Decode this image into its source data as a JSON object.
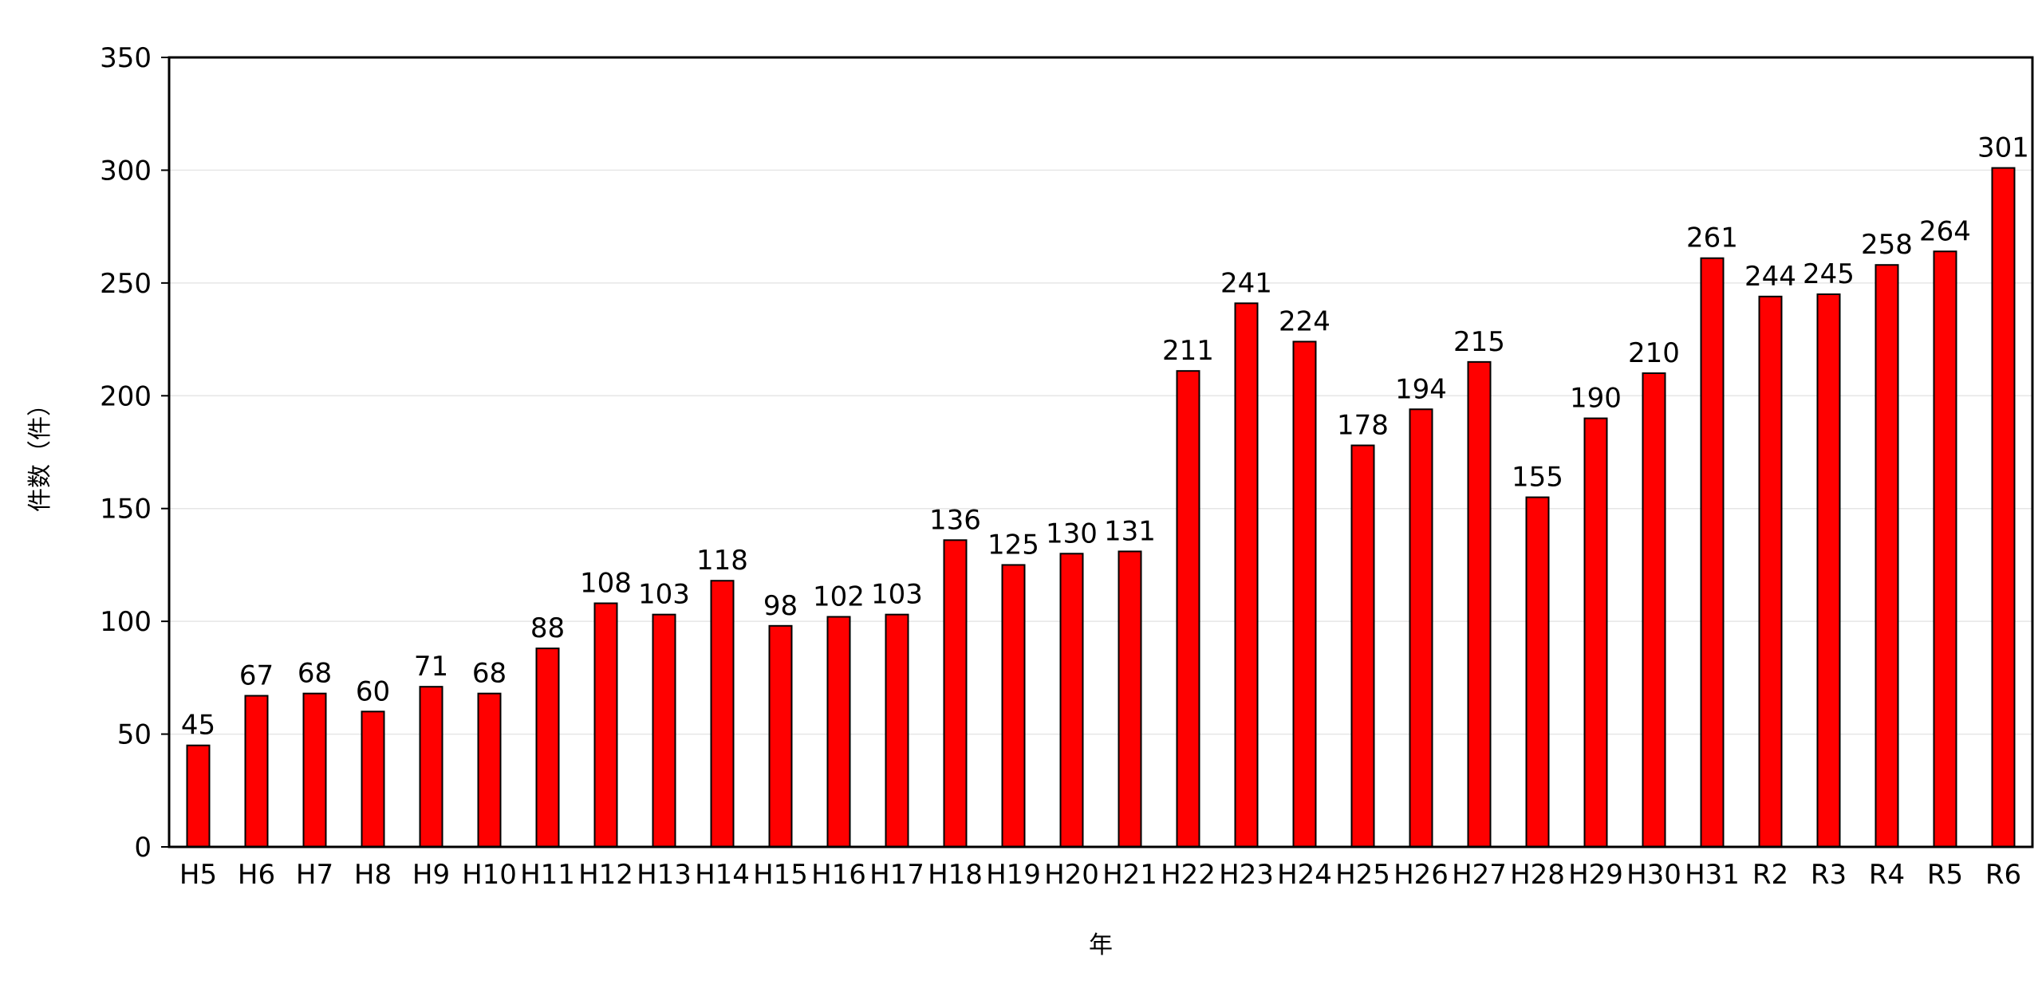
{
  "chart_data": {
    "type": "bar",
    "title": "",
    "xlabel": "年",
    "ylabel": "件数（件）",
    "ylim": [
      0,
      350
    ],
    "yticks": [
      0,
      50,
      100,
      150,
      200,
      250,
      300,
      350
    ],
    "grid": true,
    "categories": [
      "H5",
      "H6",
      "H7",
      "H8",
      "H9",
      "H10",
      "H11",
      "H12",
      "H13",
      "H14",
      "H15",
      "H16",
      "H17",
      "H18",
      "H19",
      "H20",
      "H21",
      "H22",
      "H23",
      "H24",
      "H25",
      "H26",
      "H27",
      "H28",
      "H29",
      "H30",
      "H31",
      "R2",
      "R3",
      "R4",
      "R5",
      "R6"
    ],
    "values": [
      45,
      67,
      68,
      60,
      71,
      68,
      88,
      108,
      103,
      118,
      98,
      102,
      103,
      136,
      125,
      130,
      131,
      211,
      241,
      224,
      178,
      194,
      215,
      155,
      190,
      210,
      261,
      244,
      245,
      258,
      264,
      301
    ],
    "bar_color": "#ff0000",
    "bar_edge_color": "#000000"
  }
}
